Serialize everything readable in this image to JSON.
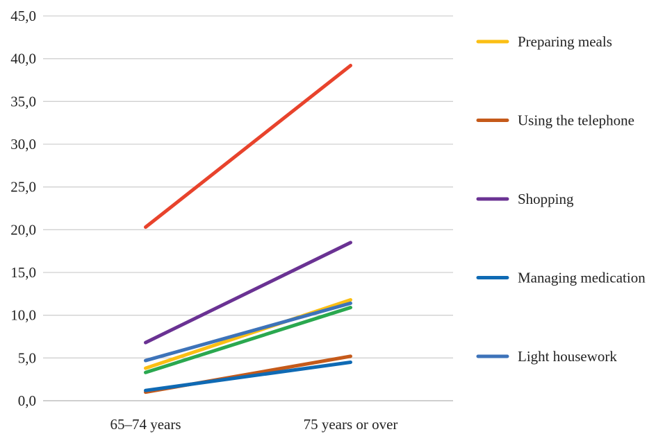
{
  "chart_data": {
    "type": "line",
    "title": "",
    "xlabel": "",
    "ylabel": "",
    "categories": [
      "65–74 years",
      "75 years or over"
    ],
    "ylim": [
      0,
      45
    ],
    "yticks": [
      0,
      5,
      10,
      15,
      20,
      25,
      30,
      35,
      40,
      45
    ],
    "ytick_labels": [
      "0,0",
      "5,0",
      "10,0",
      "15,0",
      "20,0",
      "25,0",
      "30,0",
      "35,0",
      "40,0",
      "45,0"
    ],
    "grid": true,
    "legend_position": "right",
    "series": [
      {
        "name": "Preparing meals",
        "color": "#fbbf14",
        "values": [
          3.8,
          11.8
        ],
        "in_legend": true
      },
      {
        "name": "Using the telephone",
        "color": "#c55a1a",
        "values": [
          1.0,
          5.2
        ],
        "in_legend": true
      },
      {
        "name": "Shopping",
        "color": "#6a3293",
        "values": [
          6.8,
          18.5
        ],
        "in_legend": true
      },
      {
        "name": "Managing medication",
        "color": "#0f6ab4",
        "values": [
          1.2,
          4.5
        ],
        "in_legend": true
      },
      {
        "name": "Light housework",
        "color": "#3d73b9",
        "values": [
          4.7,
          11.4
        ],
        "in_legend": true
      },
      {
        "color": "#e8432c",
        "values": [
          20.3,
          39.2
        ],
        "in_legend": false
      },
      {
        "color": "#2aa84f",
        "values": [
          3.3,
          10.9
        ],
        "in_legend": false
      }
    ]
  }
}
